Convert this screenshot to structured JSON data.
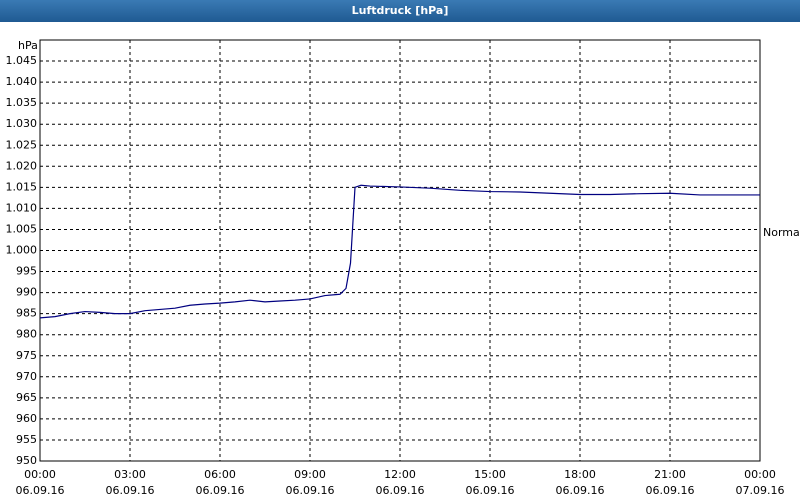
{
  "chart_data": {
    "type": "line",
    "title": "Luftdruck [hPa]",
    "y_label": "hPa",
    "annotation": "Normal",
    "x": [
      0,
      0.5,
      1,
      1.5,
      2,
      2.5,
      3,
      3.5,
      4,
      4.5,
      5,
      5.5,
      6,
      6.5,
      7,
      7.5,
      8,
      8.5,
      9,
      9.5,
      10,
      10.2,
      10.35,
      10.5,
      10.7,
      11,
      12,
      13,
      14,
      15,
      16,
      17,
      18,
      19,
      20,
      21,
      22,
      23,
      24
    ],
    "series": [
      {
        "name": "Luftdruck",
        "color": "#000080",
        "values": [
          984,
          984.3,
          985,
          985.5,
          985.3,
          985,
          985,
          985.7,
          986,
          986.3,
          987,
          987.3,
          987.5,
          987.8,
          988.2,
          987.8,
          988,
          988.2,
          988.5,
          989.3,
          989.6,
          991,
          997,
          1015,
          1015.5,
          1015.3,
          1015.1,
          1014.8,
          1014.3,
          1014,
          1013.9,
          1013.6,
          1013.3,
          1013.3,
          1013.5,
          1013.6,
          1013.2,
          1013.2,
          1013.2
        ]
      }
    ],
    "xlim": [
      0,
      24
    ],
    "xticks": [
      {
        "value": 0,
        "label": "00:00\n06.09.16"
      },
      {
        "value": 3,
        "label": "03:00\n06.09.16"
      },
      {
        "value": 6,
        "label": "06:00\n06.09.16"
      },
      {
        "value": 9,
        "label": "09:00\n06.09.16"
      },
      {
        "value": 12,
        "label": "12:00\n06.09.16"
      },
      {
        "value": 15,
        "label": "15:00\n06.09.16"
      },
      {
        "value": 18,
        "label": "18:00\n06.09.16"
      },
      {
        "value": 21,
        "label": "21:00\n06.09.16"
      },
      {
        "value": 24,
        "label": "00:00\n07.09.16"
      }
    ],
    "ylim": [
      950,
      1050
    ],
    "yticks": [
      950,
      955,
      960,
      965,
      970,
      975,
      980,
      985,
      990,
      995,
      {
        "value": 1000,
        "label": "1.000"
      },
      {
        "value": 1005,
        "label": "1.005"
      },
      {
        "value": 1010,
        "label": "1.010"
      },
      {
        "value": 1015,
        "label": "1.015"
      },
      {
        "value": 1020,
        "label": "1.020"
      },
      {
        "value": 1025,
        "label": "1.025"
      },
      {
        "value": 1030,
        "label": "1.030"
      },
      {
        "value": 1035,
        "label": "1.035"
      },
      {
        "value": 1040,
        "label": "1.040"
      },
      {
        "value": 1045,
        "label": "1.045"
      }
    ],
    "grid": true
  }
}
